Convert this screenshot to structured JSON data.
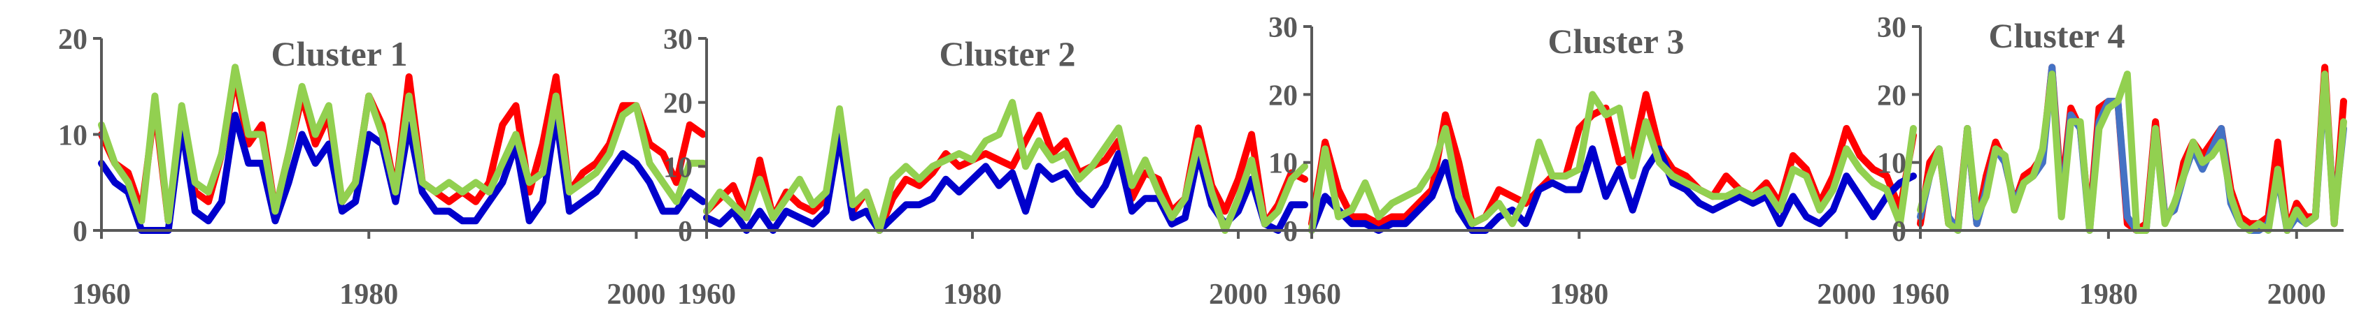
{
  "chart_data": [
    {
      "type": "line",
      "title": "Cluster 1",
      "xlim": [
        1960,
        2005
      ],
      "ylim": [
        0,
        20
      ],
      "x_ticks": [
        1960,
        1980,
        2000
      ],
      "y_ticks": [
        0,
        10,
        20
      ],
      "x": [
        1960,
        1961,
        1962,
        1963,
        1964,
        1965,
        1966,
        1967,
        1968,
        1969,
        1970,
        1971,
        1972,
        1973,
        1974,
        1975,
        1976,
        1977,
        1978,
        1979,
        1980,
        1981,
        1982,
        1983,
        1984,
        1985,
        1986,
        1987,
        1988,
        1989,
        1990,
        1991,
        1992,
        1993,
        1994,
        1995,
        1996,
        1997,
        1998,
        1999,
        2000,
        2001,
        2002,
        2003,
        2004,
        2005
      ],
      "series": [
        {
          "color": "#ff0000",
          "values": [
            10,
            7,
            6,
            2,
            13,
            1,
            12,
            4,
            3,
            8,
            16,
            9,
            11,
            2,
            8,
            14,
            9,
            12,
            3,
            5,
            14,
            11,
            4,
            16,
            5,
            4,
            3,
            4,
            3,
            5,
            11,
            13,
            4,
            9,
            16,
            4,
            6,
            7,
            9,
            13,
            13,
            9,
            8,
            5,
            11,
            10
          ]
        },
        {
          "color": "#0000cc",
          "values": [
            7,
            5,
            4,
            0,
            0,
            0,
            11,
            2,
            1,
            3,
            12,
            7,
            7,
            1,
            5,
            10,
            7,
            9,
            2,
            3,
            10,
            9,
            3,
            11,
            4,
            2,
            2,
            1,
            1,
            3,
            5,
            9,
            1,
            3,
            12,
            2,
            3,
            4,
            6,
            8,
            7,
            5,
            2,
            2,
            4,
            3
          ]
        },
        {
          "color": "#92d050",
          "values": [
            11,
            7,
            5,
            1,
            14,
            1,
            13,
            5,
            4,
            8,
            17,
            10,
            10,
            2,
            8,
            15,
            10,
            13,
            3,
            5,
            14,
            10,
            4,
            14,
            5,
            4,
            5,
            4,
            5,
            4,
            7,
            10,
            5,
            6,
            14,
            4,
            5,
            6,
            8,
            12,
            13,
            7,
            5,
            3,
            7,
            7
          ]
        }
      ]
    },
    {
      "type": "line",
      "title": "Cluster 2",
      "xlim": [
        1960,
        2005
      ],
      "ylim": [
        0,
        30
      ],
      "x_ticks": [
        1960,
        1980,
        2000
      ],
      "y_ticks": [
        0,
        10,
        20,
        30
      ],
      "x": [
        1960,
        1961,
        1962,
        1963,
        1964,
        1965,
        1966,
        1967,
        1968,
        1969,
        1970,
        1971,
        1972,
        1973,
        1974,
        1975,
        1976,
        1977,
        1978,
        1979,
        1980,
        1981,
        1982,
        1983,
        1984,
        1985,
        1986,
        1987,
        1988,
        1989,
        1990,
        1991,
        1992,
        1993,
        1994,
        1995,
        1996,
        1997,
        1998,
        1999,
        2000,
        2001,
        2002,
        2003,
        2004,
        2005
      ],
      "series": [
        {
          "color": "#ff0000",
          "values": [
            3,
            5,
            7,
            2,
            11,
            2,
            6,
            4,
            3,
            5,
            18,
            3,
            6,
            0,
            5,
            8,
            7,
            9,
            12,
            10,
            11,
            12,
            11,
            10,
            14,
            18,
            12,
            14,
            9,
            10,
            11,
            14,
            5,
            9,
            8,
            3,
            5,
            16,
            7,
            3,
            8,
            15,
            1,
            4,
            9,
            8
          ]
        },
        {
          "color": "#0000cc",
          "values": [
            2,
            1,
            3,
            0,
            3,
            0,
            3,
            2,
            1,
            3,
            15,
            2,
            3,
            0,
            2,
            4,
            4,
            5,
            8,
            6,
            8,
            10,
            7,
            9,
            3,
            10,
            8,
            9,
            6,
            4,
            7,
            12,
            3,
            5,
            5,
            1,
            2,
            12,
            4,
            1,
            3,
            8,
            1,
            0,
            4,
            4
          ]
        },
        {
          "color": "#92d050",
          "values": [
            3,
            6,
            4,
            2,
            8,
            2,
            5,
            8,
            4,
            6,
            19,
            4,
            6,
            0,
            8,
            10,
            8,
            10,
            11,
            12,
            11,
            14,
            15,
            20,
            10,
            14,
            11,
            12,
            8,
            10,
            13,
            16,
            7,
            11,
            6,
            2,
            5,
            14,
            6,
            0,
            5,
            11,
            1,
            3,
            8,
            10
          ]
        }
      ]
    },
    {
      "type": "line",
      "title": "Cluster 3",
      "xlim": [
        1960,
        2005
      ],
      "ylim": [
        0,
        30
      ],
      "x_ticks": [
        1960,
        1980,
        2000
      ],
      "y_ticks": [
        0,
        10,
        20,
        30
      ],
      "x": [
        1960,
        1961,
        1962,
        1963,
        1964,
        1965,
        1966,
        1967,
        1968,
        1969,
        1970,
        1971,
        1972,
        1973,
        1974,
        1975,
        1976,
        1977,
        1978,
        1979,
        1980,
        1981,
        1982,
        1983,
        1984,
        1985,
        1986,
        1987,
        1988,
        1989,
        1990,
        1991,
        1992,
        1993,
        1994,
        1995,
        1996,
        1997,
        1998,
        1999,
        2000,
        2001,
        2002,
        2003,
        2004,
        2005
      ],
      "series": [
        {
          "color": "#ff0000",
          "values": [
            1,
            13,
            6,
            2,
            2,
            1,
            2,
            2,
            4,
            6,
            17,
            10,
            1,
            2,
            6,
            5,
            4,
            6,
            8,
            8,
            15,
            17,
            18,
            10,
            11,
            20,
            12,
            9,
            8,
            6,
            5,
            8,
            6,
            5,
            7,
            4,
            11,
            9,
            4,
            8,
            15,
            11,
            9,
            8,
            3,
            14
          ]
        },
        {
          "color": "#0000cc",
          "values": [
            0,
            5,
            3,
            1,
            1,
            0,
            1,
            1,
            3,
            5,
            10,
            3,
            0,
            0,
            2,
            3,
            1,
            6,
            7,
            6,
            6,
            12,
            5,
            9,
            3,
            9,
            12,
            7,
            6,
            4,
            3,
            4,
            5,
            4,
            5,
            1,
            5,
            2,
            1,
            3,
            8,
            5,
            2,
            5,
            7,
            8
          ]
        },
        {
          "color": "#92d050",
          "values": [
            0,
            12,
            2,
            3,
            7,
            2,
            4,
            5,
            6,
            9,
            15,
            5,
            1,
            2,
            4,
            1,
            5,
            13,
            8,
            8,
            9,
            20,
            17,
            18,
            8,
            16,
            10,
            8,
            7,
            6,
            5,
            5,
            6,
            5,
            6,
            3,
            9,
            8,
            3,
            6,
            12,
            9,
            7,
            6,
            1,
            15
          ]
        }
      ]
    },
    {
      "type": "line",
      "title": "Cluster 4",
      "xlim": [
        1960,
        2005
      ],
      "ylim": [
        0,
        30
      ],
      "x_ticks": [
        1960,
        1980,
        2000
      ],
      "y_ticks": [
        0,
        10,
        20,
        30
      ],
      "x": [
        1960,
        1961,
        1962,
        1963,
        1964,
        1965,
        1966,
        1967,
        1968,
        1969,
        1970,
        1971,
        1972,
        1973,
        1974,
        1975,
        1976,
        1977,
        1978,
        1979,
        1980,
        1981,
        1982,
        1983,
        1984,
        1985,
        1986,
        1987,
        1988,
        1989,
        1990,
        1991,
        1992,
        1993,
        1994,
        1995,
        1996,
        1997,
        1998,
        1999,
        2000,
        2001,
        2002,
        2003,
        2004,
        2005
      ],
      "series": [
        {
          "color": "#ff0000",
          "values": [
            1,
            10,
            12,
            1,
            1,
            15,
            1,
            8,
            13,
            10,
            4,
            8,
            9,
            11,
            24,
            5,
            18,
            15,
            1,
            18,
            19,
            19,
            1,
            0,
            1,
            16,
            2,
            3,
            10,
            13,
            11,
            13,
            15,
            6,
            2,
            1,
            1,
            2,
            13,
            0,
            4,
            2,
            2,
            24,
            1,
            19
          ]
        },
        {
          "color": "#4472c4",
          "values": [
            2,
            8,
            12,
            2,
            0,
            15,
            1,
            6,
            12,
            10,
            4,
            7,
            8,
            10,
            24,
            3,
            17,
            15,
            0,
            16,
            19,
            19,
            2,
            0,
            0,
            15,
            2,
            3,
            8,
            12,
            9,
            12,
            15,
            4,
            1,
            0,
            0,
            1,
            8,
            0,
            2,
            1,
            2,
            22,
            2,
            15
          ]
        },
        {
          "color": "#92d050",
          "values": [
            3,
            8,
            12,
            1,
            0,
            15,
            2,
            5,
            12,
            11,
            3,
            7,
            8,
            12,
            23,
            2,
            16,
            16,
            0,
            15,
            18,
            19,
            23,
            0,
            0,
            15,
            1,
            4,
            8,
            13,
            10,
            11,
            13,
            5,
            1,
            0,
            1,
            0,
            9,
            0,
            3,
            1,
            2,
            23,
            1,
            16
          ]
        }
      ]
    }
  ]
}
